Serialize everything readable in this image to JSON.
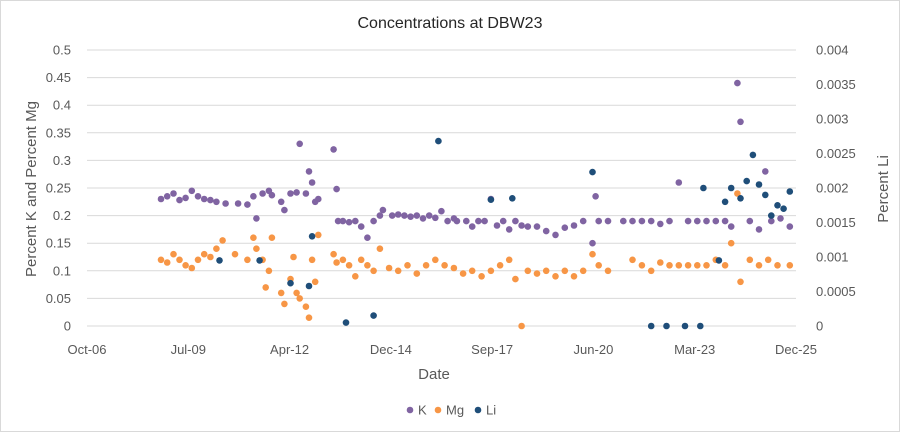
{
  "chart_data": {
    "type": "scatter",
    "title": "Concentrations at DBW23",
    "xlabel": "Date",
    "ylabel": "Percent K and Percent Mg",
    "y2label": "Percent Li",
    "xlim": [
      "2006-10-01",
      "2025-12-01"
    ],
    "xticks": [
      "Oct-06",
      "Jul-09",
      "Apr-12",
      "Dec-14",
      "Sep-17",
      "Jun-20",
      "Mar-23",
      "Dec-25"
    ],
    "ylim": [
      0,
      0.5
    ],
    "yticks": [
      "0",
      "0.05",
      "0.1",
      "0.15",
      "0.2",
      "0.25",
      "0.3",
      "0.35",
      "0.4",
      "0.45",
      "0.5"
    ],
    "y2lim": [
      0,
      0.004
    ],
    "y2ticks": [
      "0",
      "0.0005",
      "0.001",
      "0.0015",
      "0.002",
      "0.0025",
      "0.003",
      "0.0035",
      "0.004"
    ],
    "grid": true,
    "legend_position": "bottom",
    "series": [
      {
        "name": "K",
        "axis": "left",
        "color": "#8064A2",
        "points": [
          [
            "2008-10-01",
            0.23
          ],
          [
            "2008-12-01",
            0.235
          ],
          [
            "2009-02-01",
            0.24
          ],
          [
            "2009-04-01",
            0.228
          ],
          [
            "2009-06-01",
            0.232
          ],
          [
            "2009-08-01",
            0.245
          ],
          [
            "2009-10-01",
            0.235
          ],
          [
            "2009-12-01",
            0.23
          ],
          [
            "2010-02-01",
            0.228
          ],
          [
            "2010-04-01",
            0.225
          ],
          [
            "2010-07-01",
            0.222
          ],
          [
            "2010-11-01",
            0.222
          ],
          [
            "2011-02-01",
            0.22
          ],
          [
            "2011-04-01",
            0.235
          ],
          [
            "2011-05-01",
            0.195
          ],
          [
            "2011-07-01",
            0.24
          ],
          [
            "2011-09-01",
            0.245
          ],
          [
            "2011-10-01",
            0.237
          ],
          [
            "2012-01-01",
            0.225
          ],
          [
            "2012-02-01",
            0.21
          ],
          [
            "2012-04-01",
            0.24
          ],
          [
            "2012-06-01",
            0.242
          ],
          [
            "2012-07-01",
            0.33
          ],
          [
            "2012-09-01",
            0.24
          ],
          [
            "2012-10-01",
            0.28
          ],
          [
            "2012-11-01",
            0.26
          ],
          [
            "2012-12-01",
            0.225
          ],
          [
            "2013-01-01",
            0.23
          ],
          [
            "2013-06-01",
            0.32
          ],
          [
            "2013-07-01",
            0.248
          ],
          [
            "2013-07-15",
            0.19
          ],
          [
            "2013-09-01",
            0.19
          ],
          [
            "2013-11-01",
            0.188
          ],
          [
            "2014-01-01",
            0.19
          ],
          [
            "2014-03-01",
            0.18
          ],
          [
            "2014-05-01",
            0.16
          ],
          [
            "2014-07-01",
            0.19
          ],
          [
            "2014-09-01",
            0.2
          ],
          [
            "2014-10-01",
            0.21
          ],
          [
            "2015-01-01",
            0.2
          ],
          [
            "2015-03-01",
            0.202
          ],
          [
            "2015-05-01",
            0.2
          ],
          [
            "2015-07-01",
            0.198
          ],
          [
            "2015-09-01",
            0.2
          ],
          [
            "2015-11-01",
            0.195
          ],
          [
            "2016-01-01",
            0.2
          ],
          [
            "2016-03-01",
            0.196
          ],
          [
            "2016-05-01",
            0.208
          ],
          [
            "2016-07-01",
            0.19
          ],
          [
            "2016-09-01",
            0.195
          ],
          [
            "2016-10-01",
            0.19
          ],
          [
            "2017-01-01",
            0.19
          ],
          [
            "2017-03-01",
            0.18
          ],
          [
            "2017-05-01",
            0.19
          ],
          [
            "2017-07-01",
            0.19
          ],
          [
            "2017-09-01",
            0.23
          ],
          [
            "2017-11-01",
            0.182
          ],
          [
            "2018-01-01",
            0.19
          ],
          [
            "2018-03-01",
            0.175
          ],
          [
            "2018-05-01",
            0.19
          ],
          [
            "2018-07-01",
            0.182
          ],
          [
            "2018-09-01",
            0.18
          ],
          [
            "2018-12-01",
            0.18
          ],
          [
            "2019-03-01",
            0.172
          ],
          [
            "2019-06-01",
            0.165
          ],
          [
            "2019-09-01",
            0.178
          ],
          [
            "2019-12-01",
            0.182
          ],
          [
            "2020-03-01",
            0.19
          ],
          [
            "2020-06-01",
            0.15
          ],
          [
            "2020-07-01",
            0.235
          ],
          [
            "2020-08-01",
            0.19
          ],
          [
            "2020-11-01",
            0.19
          ],
          [
            "2021-04-01",
            0.19
          ],
          [
            "2021-07-01",
            0.19
          ],
          [
            "2021-10-01",
            0.19
          ],
          [
            "2022-01-01",
            0.19
          ],
          [
            "2022-04-01",
            0.185
          ],
          [
            "2022-07-01",
            0.19
          ],
          [
            "2022-10-01",
            0.26
          ],
          [
            "2023-01-01",
            0.19
          ],
          [
            "2023-04-01",
            0.19
          ],
          [
            "2023-07-01",
            0.19
          ],
          [
            "2023-10-01",
            0.19
          ],
          [
            "2024-01-01",
            0.19
          ],
          [
            "2024-03-01",
            0.18
          ],
          [
            "2024-05-01",
            0.44
          ],
          [
            "2024-06-01",
            0.37
          ],
          [
            "2024-09-01",
            0.19
          ],
          [
            "2024-12-01",
            0.175
          ],
          [
            "2025-02-01",
            0.28
          ],
          [
            "2025-04-01",
            0.19
          ],
          [
            "2025-07-01",
            0.195
          ],
          [
            "2025-10-01",
            0.18
          ]
        ]
      },
      {
        "name": "Mg",
        "axis": "left",
        "color": "#F79646",
        "points": [
          [
            "2008-10-01",
            0.12
          ],
          [
            "2008-12-01",
            0.115
          ],
          [
            "2009-02-01",
            0.13
          ],
          [
            "2009-04-01",
            0.12
          ],
          [
            "2009-06-01",
            0.11
          ],
          [
            "2009-08-01",
            0.105
          ],
          [
            "2009-10-01",
            0.12
          ],
          [
            "2009-12-01",
            0.13
          ],
          [
            "2010-02-01",
            0.125
          ],
          [
            "2010-04-01",
            0.14
          ],
          [
            "2010-06-01",
            0.155
          ],
          [
            "2010-10-01",
            0.13
          ],
          [
            "2011-02-01",
            0.12
          ],
          [
            "2011-04-01",
            0.16
          ],
          [
            "2011-05-01",
            0.14
          ],
          [
            "2011-07-01",
            0.12
          ],
          [
            "2011-08-01",
            0.07
          ],
          [
            "2011-09-01",
            0.1
          ],
          [
            "2011-10-01",
            0.16
          ],
          [
            "2012-01-01",
            0.06
          ],
          [
            "2012-02-01",
            0.04
          ],
          [
            "2012-04-01",
            0.085
          ],
          [
            "2012-05-01",
            0.125
          ],
          [
            "2012-06-01",
            0.06
          ],
          [
            "2012-07-01",
            0.05
          ],
          [
            "2012-09-01",
            0.035
          ],
          [
            "2012-10-01",
            0.015
          ],
          [
            "2012-11-01",
            0.12
          ],
          [
            "2012-12-01",
            0.08
          ],
          [
            "2013-01-01",
            0.165
          ],
          [
            "2013-06-01",
            0.13
          ],
          [
            "2013-07-01",
            0.115
          ],
          [
            "2013-09-01",
            0.12
          ],
          [
            "2013-11-01",
            0.11
          ],
          [
            "2014-01-01",
            0.09
          ],
          [
            "2014-03-01",
            0.12
          ],
          [
            "2014-05-01",
            0.11
          ],
          [
            "2014-07-01",
            0.1
          ],
          [
            "2014-09-01",
            0.14
          ],
          [
            "2014-12-01",
            0.105
          ],
          [
            "2015-03-01",
            0.1
          ],
          [
            "2015-06-01",
            0.11
          ],
          [
            "2015-09-01",
            0.095
          ],
          [
            "2015-12-01",
            0.11
          ],
          [
            "2016-03-01",
            0.12
          ],
          [
            "2016-06-01",
            0.11
          ],
          [
            "2016-09-01",
            0.105
          ],
          [
            "2016-12-01",
            0.095
          ],
          [
            "2017-03-01",
            0.1
          ],
          [
            "2017-06-01",
            0.09
          ],
          [
            "2017-09-01",
            0.1
          ],
          [
            "2017-12-01",
            0.11
          ],
          [
            "2018-03-01",
            0.12
          ],
          [
            "2018-05-01",
            0.085
          ],
          [
            "2018-07-01",
            0.0
          ],
          [
            "2018-09-01",
            0.1
          ],
          [
            "2018-12-01",
            0.095
          ],
          [
            "2019-03-01",
            0.1
          ],
          [
            "2019-06-01",
            0.09
          ],
          [
            "2019-09-01",
            0.1
          ],
          [
            "2019-12-01",
            0.09
          ],
          [
            "2020-03-01",
            0.1
          ],
          [
            "2020-06-01",
            0.13
          ],
          [
            "2020-08-01",
            0.11
          ],
          [
            "2020-11-01",
            0.1
          ],
          [
            "2021-07-01",
            0.12
          ],
          [
            "2021-10-01",
            0.11
          ],
          [
            "2022-01-01",
            0.1
          ],
          [
            "2022-04-01",
            0.115
          ],
          [
            "2022-07-01",
            0.11
          ],
          [
            "2022-10-01",
            0.11
          ],
          [
            "2023-01-01",
            0.11
          ],
          [
            "2023-04-01",
            0.11
          ],
          [
            "2023-07-01",
            0.11
          ],
          [
            "2023-10-01",
            0.12
          ],
          [
            "2024-01-01",
            0.11
          ],
          [
            "2024-03-01",
            0.15
          ],
          [
            "2024-05-01",
            0.24
          ],
          [
            "2024-06-01",
            0.08
          ],
          [
            "2024-09-01",
            0.12
          ],
          [
            "2024-12-01",
            0.11
          ],
          [
            "2025-03-01",
            0.12
          ],
          [
            "2025-06-01",
            0.11
          ],
          [
            "2025-10-01",
            0.11
          ]
        ]
      },
      {
        "name": "Li",
        "axis": "right",
        "color": "#1F4E79",
        "points": [
          [
            "2010-05-01",
            0.00095
          ],
          [
            "2011-06-01",
            0.00095
          ],
          [
            "2012-04-01",
            0.00062
          ],
          [
            "2012-10-01",
            0.00058
          ],
          [
            "2012-11-01",
            0.0013
          ],
          [
            "2013-10-01",
            5e-05
          ],
          [
            "2014-07-01",
            0.00015
          ],
          [
            "2016-04-01",
            0.00268
          ],
          [
            "2017-09-01",
            0.00183
          ],
          [
            "2018-04-01",
            0.00185
          ],
          [
            "2020-06-01",
            0.00223
          ],
          [
            "2022-01-01",
            0.0
          ],
          [
            "2022-06-01",
            0.0
          ],
          [
            "2022-12-01",
            0.0
          ],
          [
            "2023-05-01",
            0.0
          ],
          [
            "2023-06-01",
            0.002
          ],
          [
            "2023-11-01",
            0.00095
          ],
          [
            "2024-01-01",
            0.0018
          ],
          [
            "2024-03-01",
            0.002
          ],
          [
            "2024-06-01",
            0.00185
          ],
          [
            "2024-08-01",
            0.0021
          ],
          [
            "2024-10-01",
            0.00248
          ],
          [
            "2024-12-01",
            0.00205
          ],
          [
            "2025-02-01",
            0.0019
          ],
          [
            "2025-04-01",
            0.0016
          ],
          [
            "2025-06-01",
            0.00175
          ],
          [
            "2025-08-01",
            0.0017
          ],
          [
            "2025-10-01",
            0.00195
          ]
        ]
      }
    ]
  }
}
